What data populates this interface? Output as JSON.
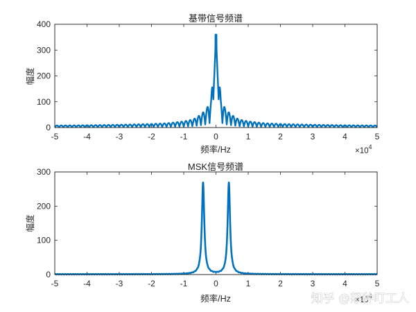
{
  "colors": {
    "series": "#0072BD",
    "axis": "#262626",
    "background": "#ffffff"
  },
  "chart_data": [
    {
      "type": "line",
      "title": "基带信号频谱",
      "xlabel": "频率/Hz",
      "ylabel": "幅度",
      "xlim": [
        -5,
        5
      ],
      "ylim": [
        0,
        400
      ],
      "x_exponent_label": "×10⁴",
      "x_exponent_base": "×10",
      "x_exponent_power": "4",
      "xticks": [
        "-5",
        "-4",
        "-3",
        "-2",
        "-1",
        "0",
        "1",
        "2",
        "3",
        "4",
        "5"
      ],
      "yticks": [
        "0",
        "100",
        "200",
        "300",
        "400"
      ],
      "grid": false,
      "series": [
        {
          "style": "dense oscillating line spectrum (sinc-like envelope)",
          "peak": {
            "x": 0,
            "y": 360
          },
          "envelope": {
            "x": [
              -5,
              -4,
              -3,
              -2,
              -1.5,
              -1,
              -0.7,
              -0.5,
              -0.3,
              -0.15,
              0,
              0.15,
              0.3,
              0.5,
              0.7,
              1,
              1.5,
              2,
              3,
              4,
              5
            ],
            "y": [
              8,
              9,
              11,
              14,
              17,
              24,
              32,
              48,
              70,
              110,
              360,
              110,
              70,
              48,
              32,
              24,
              17,
              14,
              11,
              9,
              8
            ]
          }
        }
      ]
    },
    {
      "type": "line",
      "title": "MSK信号频谱",
      "title_parts": [
        "MSK",
        "信号频谱"
      ],
      "xlabel": "频率/Hz",
      "ylabel": "幅度",
      "xlim": [
        -5,
        5
      ],
      "ylim": [
        0,
        300
      ],
      "x_exponent_label": "×10⁴",
      "x_exponent_base": "×10",
      "x_exponent_power": "4",
      "xticks": [
        "-5",
        "-4",
        "-3",
        "-2",
        "-1",
        "0",
        "1",
        "2",
        "3",
        "4",
        "5"
      ],
      "yticks": [
        "0",
        "100",
        "200",
        "300"
      ],
      "grid": false,
      "series": [
        {
          "style": "two narrow peaks symmetric about 0",
          "peaks": [
            {
              "x": -0.4,
              "y": 268
            },
            {
              "x": 0.4,
              "y": 268
            }
          ]
        }
      ]
    }
  ],
  "watermark": {
    "text": "知乎 @怒种叮工人"
  }
}
